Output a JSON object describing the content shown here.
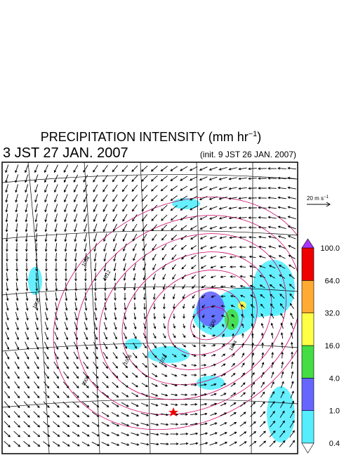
{
  "header": {
    "title": "PRECIPITATION INTENSITY (mm hr",
    "title_exponent": "−1",
    "title_close": ")",
    "valid_time": "3 JST 27 JAN. 2007",
    "init_time": "(init. 9 JST 26 JAN. 2007)"
  },
  "wind_scale": {
    "label": "20 m s",
    "exponent": "−1"
  },
  "colorbar": {
    "labels": [
      "0.4",
      "1.0",
      "4.0",
      "16.0",
      "32.0",
      "64.0",
      "100.0"
    ],
    "colors": [
      "#55eeff",
      "#6666ff",
      "#44dd44",
      "#ffff44",
      "#ffaa33",
      "#ee0000"
    ],
    "over_color": "#aa33ff",
    "under_color": "#ffffff"
  },
  "map": {
    "isobar_labels": [
      "1008",
      "1012",
      "1012",
      "1008",
      "1006",
      "1000",
      "1000",
      "1004"
    ]
  }
}
